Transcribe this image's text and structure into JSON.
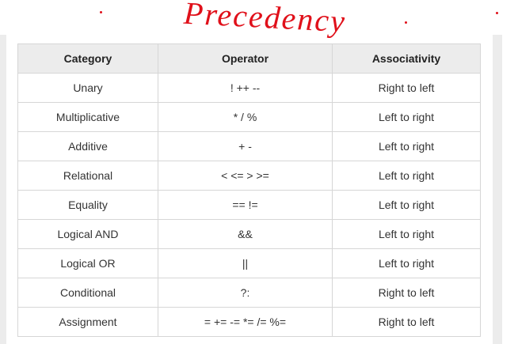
{
  "annotation": "Precedency",
  "table": {
    "header": [
      "Category",
      "Operator",
      "Associativity"
    ],
    "rows": [
      [
        "Unary",
        "! ++ --",
        "Right to left"
      ],
      [
        "Multiplicative",
        "* / %",
        "Left to right"
      ],
      [
        "Additive",
        "+ -",
        "Left to right"
      ],
      [
        "Relational",
        "< <= > >=",
        "Left to right"
      ],
      [
        "Equality",
        "== !=",
        "Left to right"
      ],
      [
        "Logical AND",
        "&&",
        "Left to right"
      ],
      [
        "Logical OR",
        "||",
        "Left to right"
      ],
      [
        "Conditional",
        "?:",
        "Right to left"
      ],
      [
        "Assignment",
        "= += -= *= /= %=",
        "Right to left"
      ]
    ]
  }
}
